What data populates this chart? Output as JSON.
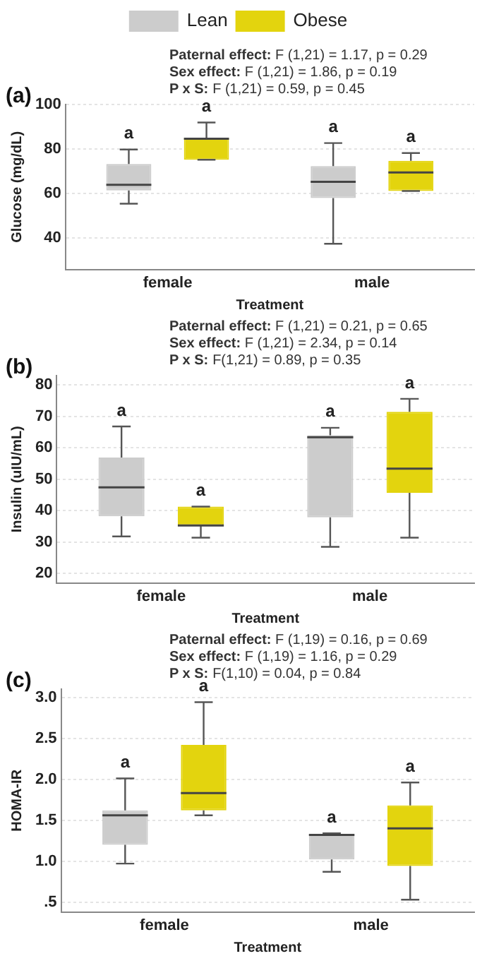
{
  "chart_data": [
    {
      "type": "box",
      "title": "(a)",
      "annotations": [
        "Paternal effect: F (1,21) = 1.17, p = 0.29",
        "Sex effect: F (1,21) = 1.86, p = 0.19",
        "P x S: F (1,21) = 0.59, p = 0.45"
      ],
      "xlabel": "Treatment",
      "ylabel": "Glucose (mg/dL)",
      "categories": [
        "female",
        "male"
      ],
      "series": [
        {
          "name": "Lean",
          "color": "#cccccc",
          "value_labels": [
            "a",
            "a"
          ],
          "boxes": [
            {
              "low": 55.5,
              "q1": 61.4,
              "median": 64,
              "q3": 73.3,
              "high": 79.8
            },
            {
              "low": 37.5,
              "q1": 58,
              "median": 65.3,
              "q3": 72.4,
              "high": 82.7
            }
          ]
        },
        {
          "name": "Obese",
          "color": "#e3d40e",
          "value_labels": [
            "a",
            "a"
          ],
          "boxes": [
            {
              "low": 75.2,
              "q1": 75.2,
              "median": 84.6,
              "q3": 85,
              "high": 91.9
            },
            {
              "low": 61.2,
              "q1": 61.2,
              "median": 69.5,
              "q3": 74.7,
              "high": 78.2
            }
          ]
        }
      ],
      "ylim": [
        26,
        100
      ],
      "yticks": [
        40,
        60,
        80,
        100
      ],
      "grid": "y",
      "legend": "top"
    },
    {
      "type": "box",
      "title": "(b)",
      "annotations": [
        "Paternal effect: F (1,21) = 0.21, p = 0.65",
        "Sex effect: F (1,21) = 2.34, p = 0.14",
        "P x S: F(1,21) = 0.89, p = 0.35"
      ],
      "xlabel": "Treatment",
      "ylabel": "Insulin (uIU/mL)",
      "categories": [
        "female",
        "male"
      ],
      "series": [
        {
          "color": "#cccccc",
          "value_labels": [
            "a",
            "a"
          ],
          "boxes": [
            {
              "low": 31.8,
              "q1": 38.2,
              "median": 47.4,
              "q3": 56.9,
              "high": 66.8
            },
            {
              "low": 28.5,
              "q1": 37.9,
              "median": 63.4,
              "q3": 64,
              "high": 66.4
            }
          ]
        },
        {
          "color": "#e3d40e",
          "value_labels": [
            "a",
            "a"
          ],
          "boxes": [
            {
              "low": 31.4,
              "q1": 35.3,
              "median": 35.3,
              "q3": 41.3,
              "high": 41.3
            },
            {
              "low": 31.4,
              "q1": 45.7,
              "median": 53.4,
              "q3": 71.5,
              "high": 75.6
            }
          ]
        }
      ],
      "ylim": [
        17,
        83
      ],
      "yticks": [
        20,
        30,
        40,
        50,
        60,
        70,
        80
      ],
      "grid": "y"
    },
    {
      "type": "box",
      "title": "(c)",
      "annotations": [
        "Paternal effect: F (1,19) = 0.16, p = 0.69",
        "Sex effect: F (1,19) = 1.16, p = 0.29",
        "P x S: F(1,10) = 0.04, p = 0.84"
      ],
      "xlabel": "Treatment",
      "ylabel": "HOMA-IR",
      "categories": [
        "female",
        "male"
      ],
      "series": [
        {
          "color": "#cccccc",
          "value_labels": [
            "a",
            "a"
          ],
          "boxes": [
            {
              "low": 0.97,
              "q1": 1.2,
              "median": 1.56,
              "q3": 1.62,
              "high": 2.01
            },
            {
              "low": 0.87,
              "q1": 1.02,
              "median": 1.32,
              "q3": 1.33,
              "high": 1.34
            }
          ]
        },
        {
          "color": "#e3d40e",
          "value_labels": [
            "a",
            "a"
          ],
          "boxes": [
            {
              "low": 1.56,
              "q1": 1.62,
              "median": 1.83,
              "q3": 2.42,
              "high": 2.94
            },
            {
              "low": 0.53,
              "q1": 0.94,
              "median": 1.4,
              "q3": 1.68,
              "high": 1.96
            }
          ]
        }
      ],
      "ylim": [
        0.38,
        3.1
      ],
      "yticks": [
        {
          "value": 0.5,
          "label": ".5"
        },
        {
          "value": 1,
          "label": "1.0"
        },
        {
          "value": 1.5,
          "label": "1.5"
        },
        {
          "value": 2,
          "label": "2.0"
        },
        {
          "value": 2.5,
          "label": "2.5"
        },
        {
          "value": 3,
          "label": "3.0"
        }
      ],
      "grid": "y"
    }
  ]
}
